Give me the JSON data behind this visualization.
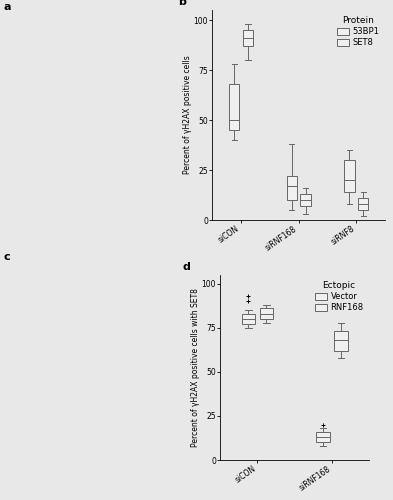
{
  "panel_b": {
    "title": "b",
    "ylabel": "Percent of γH2AX positive cells",
    "xtick_labels": [
      "siCON",
      "siRNF168",
      "siRNF8"
    ],
    "legend_title": "Protein",
    "legend_labels": [
      "53BP1",
      "SET8"
    ],
    "ylim": [
      0,
      105
    ],
    "yticks": [
      0,
      25,
      50,
      75,
      100
    ],
    "53BP1": {
      "siCON": {
        "median": 50,
        "q1": 45,
        "q3": 68,
        "whislo": 40,
        "whishi": 78,
        "fliers": []
      },
      "siRNF168": {
        "median": 17,
        "q1": 10,
        "q3": 22,
        "whislo": 5,
        "whishi": 38,
        "fliers": []
      },
      "siRNF8": {
        "median": 20,
        "q1": 14,
        "q3": 30,
        "whislo": 8,
        "whishi": 35,
        "fliers": []
      }
    },
    "SET8": {
      "siCON": {
        "median": 91,
        "q1": 87,
        "q3": 95,
        "whislo": 80,
        "whishi": 98,
        "fliers": []
      },
      "siRNF168": {
        "median": 10,
        "q1": 7,
        "q3": 13,
        "whislo": 3,
        "whishi": 16,
        "fliers": []
      },
      "siRNF8": {
        "median": 8,
        "q1": 5,
        "q3": 11,
        "whislo": 2,
        "whishi": 14,
        "fliers": []
      }
    }
  },
  "panel_d": {
    "title": "d",
    "ylabel": "Percent of γH2AX positive cells with SET8",
    "xtick_labels": [
      "siCON",
      "siRNF168"
    ],
    "legend_title": "Ectopic",
    "legend_labels": [
      "Vector",
      "RNF168"
    ],
    "ylim": [
      0,
      105
    ],
    "yticks": [
      0,
      25,
      50,
      75,
      100
    ],
    "Vector": {
      "siCON": {
        "median": 80,
        "q1": 77,
        "q3": 83,
        "whislo": 75,
        "whishi": 85,
        "fliers": [
          90,
          93
        ]
      },
      "siRNF168": {
        "median": 13,
        "q1": 10,
        "q3": 16,
        "whislo": 8,
        "whishi": 18,
        "fliers": [
          20
        ]
      }
    },
    "RNF168": {
      "siCON": {
        "median": 83,
        "q1": 80,
        "q3": 86,
        "whislo": 78,
        "whishi": 88,
        "fliers": []
      },
      "siRNF168": {
        "median": 68,
        "q1": 62,
        "q3": 73,
        "whislo": 58,
        "whishi": 78,
        "fliers": []
      }
    }
  },
  "bg_color": "#e8e8e8",
  "box_color": "#f0f0f0",
  "box_edgecolor": "#666666",
  "whisker_color": "#666666",
  "median_color": "#666666",
  "flier_color": "#555555",
  "fontsize_label": 5.5,
  "fontsize_tick": 5.5,
  "fontsize_legend_title": 6.5,
  "fontsize_legend": 6,
  "fontsize_panel_label": 8
}
